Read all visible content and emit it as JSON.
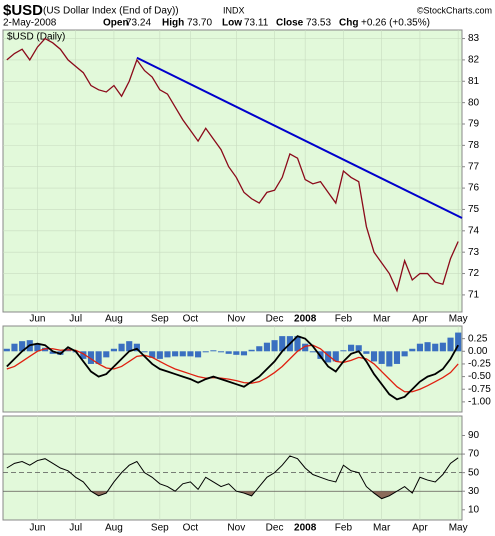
{
  "header": {
    "symbol": "$USD",
    "name": "(US Dollar Index (End of Day))",
    "exchange": "INDX",
    "source": "©StockCharts.com",
    "date": "2-May-2008",
    "stats": [
      {
        "label": "Open",
        "value": "73.24"
      },
      {
        "label": "High",
        "value": "73.70"
      },
      {
        "label": "Low",
        "value": "73.11"
      },
      {
        "label": "Close",
        "value": "73.53"
      },
      {
        "label": "Chg",
        "value": "+0.26 (+0.35%)"
      }
    ]
  },
  "chart_data": [
    {
      "type": "line",
      "legend": "$USD (Daily)",
      "background": "#e2f9da",
      "categories": [
        null,
        null,
        null,
        null,
        "Jun",
        null,
        null,
        null,
        null,
        "Jul",
        null,
        null,
        null,
        null,
        "Aug",
        null,
        null,
        null,
        null,
        null,
        "Sep",
        null,
        null,
        null,
        "Oct",
        null,
        null,
        null,
        null,
        null,
        "Nov",
        null,
        null,
        null,
        null,
        "Dec",
        null,
        null,
        null,
        "2008",
        null,
        null,
        null,
        null,
        "Feb",
        null,
        null,
        null,
        null,
        "Mar",
        null,
        null,
        null,
        null,
        "Apr",
        null,
        null,
        null,
        null,
        "May"
      ],
      "series": [
        {
          "color": "#8b0a1a",
          "values": [
            82.0,
            82.3,
            82.5,
            82.0,
            82.6,
            83.0,
            82.8,
            82.5,
            82.0,
            81.7,
            81.4,
            80.8,
            80.6,
            80.5,
            80.8,
            80.3,
            81.0,
            82.0,
            81.5,
            81.2,
            80.6,
            80.4,
            79.8,
            79.2,
            78.7,
            78.2,
            78.8,
            78.3,
            77.8,
            77.0,
            76.5,
            75.8,
            75.5,
            75.3,
            75.8,
            75.9,
            76.5,
            77.6,
            77.4,
            76.4,
            76.2,
            76.3,
            75.8,
            75.3,
            76.8,
            76.5,
            76.3,
            74.2,
            73.0,
            72.5,
            72.0,
            71.2,
            72.6,
            71.7,
            72.0,
            72.0,
            71.6,
            71.5,
            72.7,
            73.5
          ]
        }
      ],
      "trendline": {
        "color": "#0000cc",
        "x": [
          17,
          59.5
        ],
        "values": [
          82.1,
          74.6
        ]
      },
      "ylim": [
        70.2,
        83.4
      ],
      "yticks": [
        71,
        72,
        73,
        74,
        75,
        76,
        77,
        78,
        79,
        80,
        81,
        82,
        83
      ],
      "grid": true
    },
    {
      "type": "macd",
      "background": "#e2f9da",
      "series": [
        {
          "color": "#000000",
          "values": [
            -0.3,
            -0.15,
            0,
            0.12,
            0.15,
            0.12,
            0,
            -0.05,
            0.08,
            0,
            -0.2,
            -0.4,
            -0.5,
            -0.45,
            -0.3,
            -0.15,
            0,
            0.05,
            -0.1,
            -0.25,
            -0.35,
            -0.4,
            -0.45,
            -0.5,
            -0.55,
            -0.62,
            -0.55,
            -0.5,
            -0.55,
            -0.6,
            -0.65,
            -0.7,
            -0.6,
            -0.5,
            -0.35,
            -0.2,
            0,
            0.15,
            0.3,
            0.25,
            0.1,
            -0.1,
            -0.3,
            -0.4,
            -0.2,
            -0.05,
            0,
            -0.2,
            -0.45,
            -0.65,
            -0.85,
            -0.95,
            -0.9,
            -0.75,
            -0.6,
            -0.5,
            -0.45,
            -0.35,
            -0.15,
            0.12
          ]
        },
        {
          "color": "#e02010",
          "values": [
            -0.35,
            -0.3,
            -0.2,
            -0.1,
            0,
            0.05,
            0.05,
            0.02,
            0.03,
            0.02,
            -0.05,
            -0.15,
            -0.25,
            -0.33,
            -0.35,
            -0.3,
            -0.2,
            -0.1,
            -0.08,
            -0.12,
            -0.2,
            -0.28,
            -0.35,
            -0.4,
            -0.45,
            -0.5,
            -0.53,
            -0.52,
            -0.53,
            -0.55,
            -0.58,
            -0.62,
            -0.63,
            -0.6,
            -0.52,
            -0.42,
            -0.3,
            -0.15,
            0,
            0.1,
            0.12,
            0.05,
            -0.08,
            -0.2,
            -0.22,
            -0.18,
            -0.12,
            -0.15,
            -0.25,
            -0.4,
            -0.55,
            -0.7,
            -0.8,
            -0.8,
            -0.75,
            -0.68,
            -0.6,
            -0.52,
            -0.42,
            -0.25
          ]
        },
        {
          "color": "#3a6fc0",
          "values": [
            0.05,
            0.15,
            0.2,
            0.22,
            0.15,
            0.07,
            -0.05,
            -0.07,
            0.05,
            -0.02,
            -0.15,
            -0.25,
            -0.25,
            -0.12,
            0.05,
            0.15,
            0.2,
            0.15,
            -0.02,
            -0.13,
            -0.15,
            -0.12,
            -0.1,
            -0.1,
            -0.1,
            -0.12,
            -0.02,
            0.02,
            -0.02,
            -0.05,
            -0.07,
            -0.08,
            0.03,
            0.1,
            0.17,
            0.22,
            0.3,
            0.3,
            0.3,
            0.15,
            -0.02,
            -0.15,
            -0.22,
            -0.2,
            0.02,
            0.13,
            0.12,
            -0.05,
            -0.2,
            -0.25,
            -0.3,
            -0.25,
            -0.1,
            0.05,
            0.15,
            0.18,
            0.15,
            0.17,
            0.27,
            0.37
          ]
        }
      ],
      "ylim": [
        -1.2,
        0.5
      ],
      "yticks": [
        0.25,
        {
          "value": 0,
          "label": "0.00"
        },
        -0.25,
        {
          "value": -0.5,
          "label": "-0.50"
        },
        -0.75,
        {
          "value": -1,
          "label": "-1.00"
        }
      ]
    },
    {
      "type": "rsi",
      "background": "#e2f9da",
      "shade_color": "#8b6b5a",
      "series": [
        {
          "color": "#000000",
          "values": [
            55,
            60,
            62,
            58,
            63,
            65,
            60,
            55,
            52,
            45,
            40,
            30,
            25,
            28,
            40,
            50,
            58,
            62,
            50,
            45,
            38,
            35,
            30,
            38,
            40,
            32,
            45,
            40,
            35,
            38,
            30,
            28,
            25,
            35,
            45,
            50,
            58,
            68,
            65,
            55,
            48,
            45,
            42,
            40,
            58,
            52,
            50,
            35,
            28,
            22,
            25,
            30,
            35,
            28,
            45,
            42,
            40,
            48,
            60,
            66
          ]
        }
      ],
      "ylim": [
        -1,
        111
      ],
      "yticks": [
        10,
        30,
        50,
        70,
        90
      ],
      "ref_lines": [
        30,
        50,
        70
      ]
    }
  ]
}
